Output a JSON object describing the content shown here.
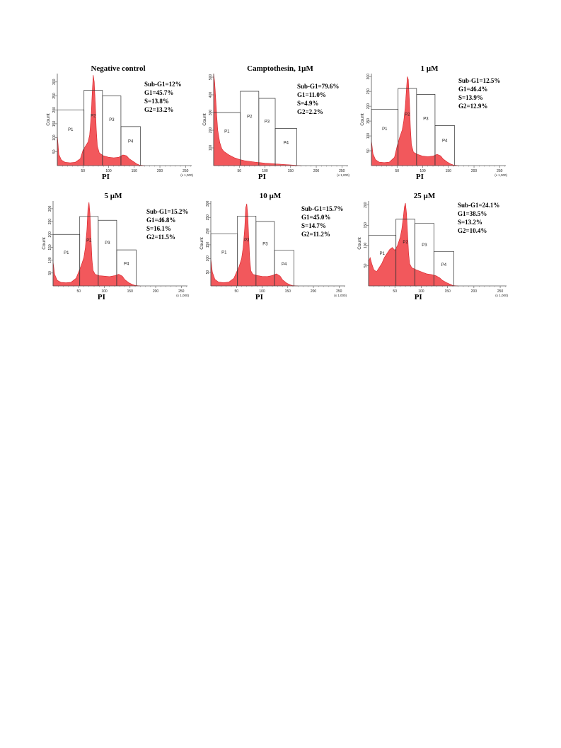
{
  "chart_data": [
    {
      "type": "area",
      "title": "Negative control",
      "xlabel": "PI",
      "ylabel": "Count",
      "x_unit": "(x 1,000)",
      "xlim": [
        0,
        262
      ],
      "ylim": [
        0,
        330
      ],
      "x_ticks": [
        50,
        100,
        150,
        200,
        250
      ],
      "y_ticks": [
        50,
        100,
        150,
        200,
        250,
        300
      ],
      "gates": [
        {
          "name": "P1",
          "x0": 0,
          "x1": 52,
          "height": 200
        },
        {
          "name": "P2",
          "x0": 52,
          "x1": 88,
          "height": 270
        },
        {
          "name": "P3",
          "x0": 88,
          "x1": 124,
          "height": 250
        },
        {
          "name": "P4",
          "x0": 124,
          "x1": 162,
          "height": 140
        }
      ],
      "stats": [
        "Sub-G1=12%",
        "G1=45.7%",
        "S=13.8%",
        "G2=13.2%"
      ],
      "histogram": {
        "x": [
          0,
          3,
          8,
          15,
          25,
          35,
          45,
          50,
          55,
          60,
          63,
          66,
          68,
          70,
          72,
          74,
          76,
          78,
          82,
          90,
          100,
          110,
          120,
          128,
          135,
          140,
          148,
          155,
          160,
          170
        ],
        "y": [
          110,
          40,
          20,
          12,
          10,
          12,
          25,
          55,
          70,
          85,
          110,
          180,
          260,
          325,
          300,
          220,
          130,
          70,
          45,
          35,
          30,
          28,
          30,
          38,
          35,
          25,
          15,
          6,
          2,
          0
        ]
      }
    },
    {
      "type": "area",
      "title": "Camptothesin, 1µM",
      "xlabel": "PI",
      "ylabel": "Count",
      "x_unit": "(x 1,000)",
      "xlim": [
        0,
        262
      ],
      "ylim": [
        0,
        520
      ],
      "x_ticks": [
        50,
        100,
        150,
        200,
        250
      ],
      "y_ticks": [
        100,
        200,
        300,
        400,
        500
      ],
      "gates": [
        {
          "name": "P1",
          "x0": 0,
          "x1": 52,
          "height": 300
        },
        {
          "name": "P2",
          "x0": 52,
          "x1": 88,
          "height": 420
        },
        {
          "name": "P3",
          "x0": 88,
          "x1": 120,
          "height": 380
        },
        {
          "name": "P4",
          "x0": 120,
          "x1": 162,
          "height": 210
        }
      ],
      "stats": [
        "Sub-G1=79.6%",
        "G1=11.0%",
        "S=4.9%",
        "G2=2.2%"
      ],
      "histogram": {
        "x": [
          0,
          2,
          4,
          6,
          8,
          12,
          16,
          20,
          25,
          30,
          40,
          50,
          60,
          70,
          80,
          100,
          120,
          140,
          160,
          170
        ],
        "y": [
          520,
          470,
          380,
          280,
          200,
          130,
          95,
          80,
          70,
          60,
          45,
          35,
          28,
          24,
          20,
          14,
          10,
          6,
          2,
          0
        ]
      }
    },
    {
      "type": "area",
      "title": "1 µM",
      "xlabel": "PI",
      "ylabel": "Count",
      "x_unit": "(x 1,000)",
      "xlim": [
        0,
        262
      ],
      "ylim": [
        0,
        310
      ],
      "x_ticks": [
        50,
        100,
        150,
        200,
        250
      ],
      "y_ticks": [
        50,
        100,
        150,
        200,
        250,
        300
      ],
      "gates": [
        {
          "name": "P1",
          "x0": 0,
          "x1": 52,
          "height": 190
        },
        {
          "name": "P2",
          "x0": 52,
          "x1": 88,
          "height": 260
        },
        {
          "name": "P3",
          "x0": 88,
          "x1": 124,
          "height": 240
        },
        {
          "name": "P4",
          "x0": 124,
          "x1": 162,
          "height": 135
        }
      ],
      "stats": [
        "Sub-G1=12.5%",
        "G1=46.4%",
        "S=13.9%",
        "G2=12.9%"
      ],
      "histogram": {
        "x": [
          0,
          3,
          8,
          15,
          25,
          35,
          45,
          50,
          55,
          60,
          63,
          66,
          68,
          70,
          72,
          74,
          76,
          78,
          82,
          90,
          100,
          110,
          120,
          128,
          135,
          140,
          148,
          155,
          160,
          170
        ],
        "y": [
          85,
          40,
          20,
          12,
          10,
          12,
          28,
          65,
          95,
          120,
          150,
          200,
          250,
          300,
          290,
          220,
          130,
          70,
          45,
          38,
          32,
          30,
          32,
          38,
          33,
          22,
          12,
          5,
          2,
          0
        ]
      }
    },
    {
      "type": "area",
      "title": "5 µM",
      "xlabel": "PI",
      "ylabel": "Count",
      "x_unit": "(x 1,000)",
      "xlim": [
        0,
        262
      ],
      "ylim": [
        0,
        330
      ],
      "x_ticks": [
        50,
        100,
        150,
        200,
        250
      ],
      "y_ticks": [
        50,
        100,
        150,
        200,
        250,
        300
      ],
      "gates": [
        {
          "name": "P1",
          "x0": 0,
          "x1": 52,
          "height": 200
        },
        {
          "name": "P2",
          "x0": 52,
          "x1": 88,
          "height": 270
        },
        {
          "name": "P3",
          "x0": 88,
          "x1": 124,
          "height": 255
        },
        {
          "name": "P4",
          "x0": 124,
          "x1": 162,
          "height": 140
        }
      ],
      "stats": [
        "Sub-G1=15.2%",
        "G1=46.8%",
        "S=16.1%",
        "G2=11.5%"
      ],
      "histogram": {
        "x": [
          0,
          3,
          8,
          15,
          25,
          35,
          45,
          50,
          55,
          60,
          63,
          66,
          68,
          70,
          72,
          74,
          76,
          78,
          82,
          90,
          100,
          110,
          120,
          128,
          135,
          140,
          148,
          155,
          160,
          170
        ],
        "y": [
          95,
          45,
          22,
          14,
          12,
          14,
          30,
          55,
          80,
          110,
          150,
          220,
          300,
          325,
          280,
          180,
          100,
          60,
          45,
          40,
          38,
          36,
          40,
          45,
          38,
          24,
          12,
          5,
          2,
          0
        ]
      }
    },
    {
      "type": "area",
      "title": "10 µM",
      "xlabel": "PI",
      "ylabel": "Count",
      "x_unit": "(x 1,000)",
      "xlim": [
        0,
        262
      ],
      "ylim": [
        0,
        310
      ],
      "x_ticks": [
        50,
        100,
        150,
        200,
        250
      ],
      "y_ticks": [
        50,
        100,
        150,
        200,
        250,
        300
      ],
      "gates": [
        {
          "name": "P1",
          "x0": 0,
          "x1": 52,
          "height": 190
        },
        {
          "name": "P2",
          "x0": 52,
          "x1": 88,
          "height": 255
        },
        {
          "name": "P3",
          "x0": 88,
          "x1": 124,
          "height": 235
        },
        {
          "name": "P4",
          "x0": 124,
          "x1": 162,
          "height": 130
        }
      ],
      "stats": [
        "Sub-G1=15.7%",
        "G1=45.0%",
        "S=14.7%",
        "G2=11.2%"
      ],
      "histogram": {
        "x": [
          0,
          3,
          8,
          15,
          25,
          35,
          45,
          50,
          55,
          60,
          63,
          66,
          68,
          70,
          72,
          74,
          76,
          78,
          82,
          90,
          100,
          110,
          120,
          128,
          135,
          140,
          148,
          155,
          160,
          170
        ],
        "y": [
          100,
          50,
          24,
          14,
          12,
          14,
          28,
          50,
          70,
          100,
          140,
          210,
          285,
          300,
          260,
          170,
          95,
          55,
          42,
          38,
          35,
          34,
          38,
          44,
          36,
          22,
          10,
          4,
          1,
          0
        ]
      }
    },
    {
      "type": "area",
      "title": "25 µM",
      "xlabel": "PI",
      "ylabel": "Count",
      "x_unit": "(x 1,000)",
      "xlim": [
        0,
        262
      ],
      "ylim": [
        0,
        210
      ],
      "x_ticks": [
        50,
        100,
        150,
        200,
        250
      ],
      "y_ticks": [
        50,
        100,
        150,
        200
      ],
      "gates": [
        {
          "name": "P1",
          "x0": 0,
          "x1": 52,
          "height": 125
        },
        {
          "name": "P2",
          "x0": 52,
          "x1": 88,
          "height": 165
        },
        {
          "name": "P3",
          "x0": 88,
          "x1": 124,
          "height": 155
        },
        {
          "name": "P4",
          "x0": 124,
          "x1": 162,
          "height": 85
        }
      ],
      "stats": [
        "Sub-G1=24.1%",
        "G1=38.5%",
        "S=13.2%",
        "G2=10.4%"
      ],
      "histogram": {
        "x": [
          0,
          3,
          6,
          10,
          15,
          20,
          25,
          30,
          35,
          40,
          45,
          50,
          55,
          60,
          63,
          66,
          68,
          70,
          72,
          74,
          76,
          78,
          82,
          90,
          100,
          110,
          120,
          128,
          135,
          140,
          148,
          155,
          160,
          170
        ],
        "y": [
          60,
          70,
          55,
          40,
          35,
          45,
          55,
          70,
          80,
          90,
          95,
          88,
          100,
          120,
          140,
          170,
          195,
          205,
          180,
          130,
          80,
          55,
          45,
          40,
          35,
          30,
          28,
          25,
          20,
          14,
          8,
          4,
          1,
          0
        ]
      }
    }
  ],
  "colors": {
    "fill": "#f2585c",
    "stroke": "#d81f26",
    "gate": "#333333",
    "axis": "#555555"
  }
}
